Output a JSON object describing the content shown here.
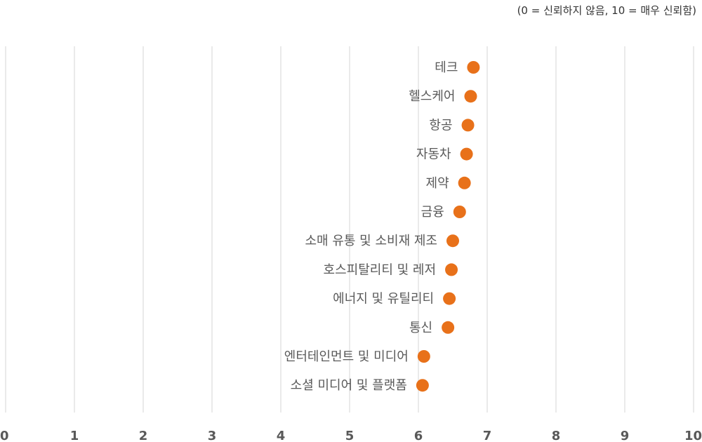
{
  "chart_data": {
    "type": "scatter",
    "subtitle": "(0 = 신뢰하지 않음, 10 = 매우 신뢰함)",
    "xlim": [
      0,
      10
    ],
    "xticks": [
      "0",
      "1",
      "2",
      "3",
      "4",
      "5",
      "6",
      "7",
      "8",
      "9",
      "10"
    ],
    "grid": "vertical",
    "point_color": "#E8711A",
    "categories": [
      "테크",
      "헬스케어",
      "항공",
      "자동차",
      "제약",
      "금융",
      "소매 유통 및 소비재 제조",
      "호스피탈리티 및 레저",
      "에너지 및 유틸리티",
      "통신",
      "엔터테인먼트 및 미디어",
      "소셜 미디어 및 플랫폼"
    ],
    "values": [
      6.8,
      6.76,
      6.72,
      6.7,
      6.67,
      6.6,
      6.5,
      6.48,
      6.45,
      6.43,
      6.08,
      6.06
    ]
  }
}
